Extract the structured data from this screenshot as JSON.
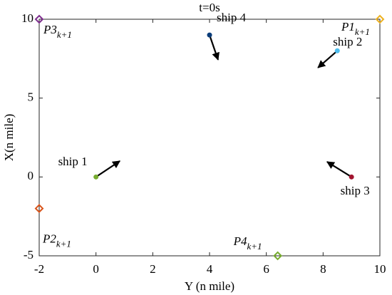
{
  "chart_data": {
    "type": "scatter",
    "title": "t=0s",
    "x_label": "Y (n mile)",
    "y_label": "X(n mile)",
    "xlim": [
      -2,
      10
    ],
    "ylim": [
      -5,
      10
    ],
    "xticks": [
      -2,
      0,
      2,
      4,
      6,
      8,
      10
    ],
    "yticks": [
      -5,
      0,
      5,
      10
    ],
    "ships": [
      {
        "name": "ship 1",
        "color": "#77ac30",
        "x": 0,
        "y": 0,
        "to": [
          0.84,
          1.01
        ]
      },
      {
        "name": "ship 4",
        "color": "#0b3d7a",
        "x": 4,
        "y": 9,
        "to": [
          4.3,
          7.43
        ]
      },
      {
        "name": "ship 2",
        "color": "#4dbeee",
        "x": 8.5,
        "y": 8,
        "to": [
          7.82,
          6.93
        ]
      },
      {
        "name": "ship 3",
        "color": "#a2142f",
        "x": 9,
        "y": 0,
        "to": [
          8.14,
          0.96
        ]
      }
    ],
    "targets": [
      {
        "name": "P3",
        "subscript": "k+1",
        "color": "#7e2f8e",
        "x": -2,
        "y": 10
      },
      {
        "name": "P1",
        "subscript": "k+1",
        "color": "#edb120",
        "x": 10,
        "y": 10
      },
      {
        "name": "P2",
        "subscript": "k+1",
        "color": "#d95319",
        "x": -2,
        "y": -2
      },
      {
        "name": "P4",
        "subscript": "k+1",
        "color": "#77ac30",
        "x": 6.4,
        "y": -5
      }
    ]
  }
}
